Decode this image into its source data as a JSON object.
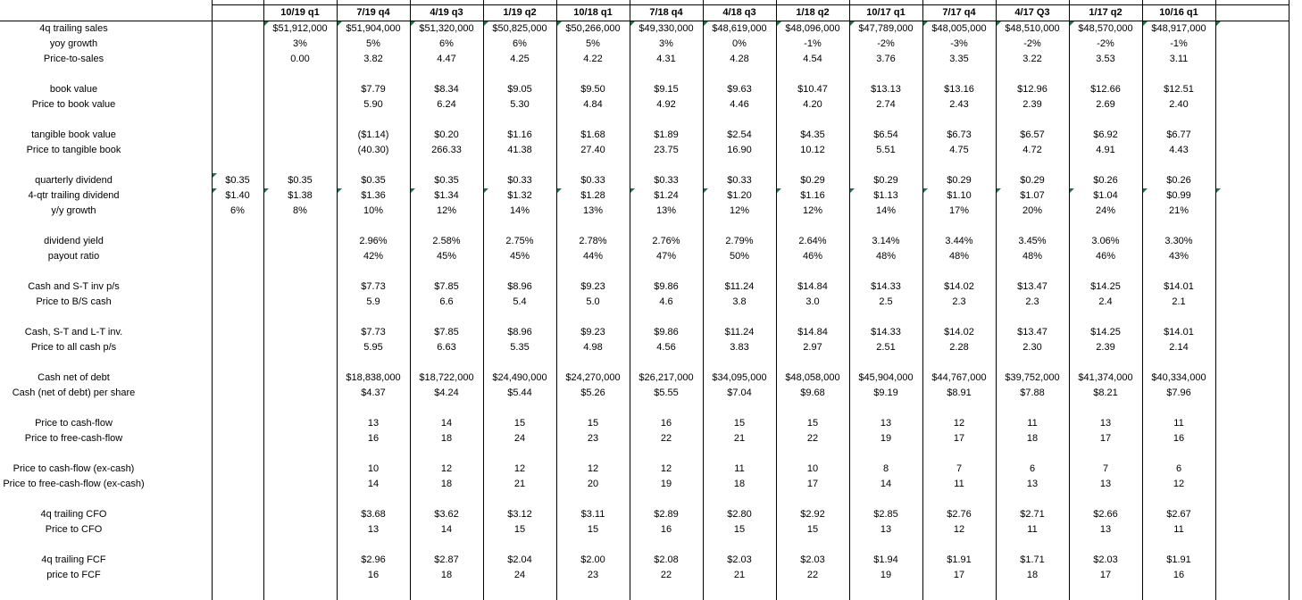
{
  "sheet": {
    "quarters": [
      "10/19 q1",
      "7/19 q4",
      "4/19 q3",
      "1/19 q2",
      "10/18 q1",
      "7/18 q4",
      "4/18 q3",
      "1/18 q2",
      "10/17 q1",
      "7/17 q4",
      "4/17 Q3",
      "1/17 q2",
      "10/16 q1"
    ],
    "rows": [
      {
        "label": "4q trailing sales",
        "b": "",
        "values": [
          "$51,912,000",
          "$51,904,000",
          "$51,320,000",
          "$50,825,000",
          "$50,266,000",
          "$49,330,000",
          "$48,619,000",
          "$48,096,000",
          "$47,789,000",
          "$48,005,000",
          "$48,510,000",
          "$48,570,000",
          "$48,917,000"
        ],
        "flag_values": true,
        "flag_partial": true
      },
      {
        "label": "yoy growth",
        "b": "",
        "values": [
          "3%",
          "5%",
          "6%",
          "6%",
          "5%",
          "3%",
          "0%",
          "-1%",
          "-2%",
          "-3%",
          "-2%",
          "-2%",
          "-1%"
        ]
      },
      {
        "label": "Price-to-sales",
        "b": "",
        "values": [
          "0.00",
          "3.82",
          "4.47",
          "4.25",
          "4.22",
          "4.31",
          "4.28",
          "4.54",
          "3.76",
          "3.35",
          "3.22",
          "3.53",
          "3.11"
        ]
      },
      {
        "spacer": true
      },
      {
        "label": "book value",
        "b": "",
        "values": [
          "",
          "$7.79",
          "$8.34",
          "$9.05",
          "$9.50",
          "$9.15",
          "$9.63",
          "$10.47",
          "$13.13",
          "$13.16",
          "$12.96",
          "$12.66",
          "$12.51"
        ]
      },
      {
        "label": "Price to book value",
        "b": "",
        "values": [
          "",
          "5.90",
          "6.24",
          "5.30",
          "4.84",
          "4.92",
          "4.46",
          "4.20",
          "2.74",
          "2.43",
          "2.39",
          "2.69",
          "2.40"
        ]
      },
      {
        "spacer": true
      },
      {
        "label": "tangible book value",
        "b": "",
        "values": [
          "",
          "($1.14)",
          "$0.20",
          "$1.16",
          "$1.68",
          "$1.89",
          "$2.54",
          "$4.35",
          "$6.54",
          "$6.73",
          "$6.57",
          "$6.92",
          "$6.77"
        ]
      },
      {
        "label": "Price to tangible book",
        "b": "",
        "values": [
          "",
          "(40.30)",
          "266.33",
          "41.38",
          "27.40",
          "23.75",
          "16.90",
          "10.12",
          "5.51",
          "4.75",
          "4.72",
          "4.91",
          "4.43"
        ]
      },
      {
        "spacer": true
      },
      {
        "label": "quarterly dividend",
        "b": "$0.35",
        "values": [
          "$0.35",
          "$0.35",
          "$0.35",
          "$0.33",
          "$0.33",
          "$0.33",
          "$0.33",
          "$0.29",
          "$0.29",
          "$0.29",
          "$0.29",
          "$0.26",
          "$0.26"
        ],
        "flag_b": true
      },
      {
        "label": "4-qtr trailing dividend",
        "b": "$1.40",
        "values": [
          "$1.38",
          "$1.36",
          "$1.34",
          "$1.32",
          "$1.28",
          "$1.24",
          "$1.20",
          "$1.16",
          "$1.13",
          "$1.10",
          "$1.07",
          "$1.04",
          "$0.99"
        ],
        "flag_b": true,
        "flag_values": true,
        "flag_partial": true
      },
      {
        "label": "y/y growth",
        "b": "6%",
        "values": [
          "8%",
          "10%",
          "12%",
          "14%",
          "13%",
          "13%",
          "12%",
          "12%",
          "14%",
          "17%",
          "20%",
          "24%",
          "21%"
        ]
      },
      {
        "spacer": true
      },
      {
        "label": "dividend yield",
        "b": "",
        "values": [
          "",
          "2.96%",
          "2.58%",
          "2.75%",
          "2.78%",
          "2.76%",
          "2.79%",
          "2.64%",
          "3.14%",
          "3.44%",
          "3.45%",
          "3.06%",
          "3.30%"
        ]
      },
      {
        "label": "payout ratio",
        "b": "",
        "values": [
          "",
          "42%",
          "45%",
          "45%",
          "44%",
          "47%",
          "50%",
          "46%",
          "48%",
          "48%",
          "48%",
          "46%",
          "43%"
        ]
      },
      {
        "spacer": true
      },
      {
        "label": "Cash and S-T inv p/s",
        "b": "",
        "values": [
          "",
          "$7.73",
          "$7.85",
          "$8.96",
          "$9.23",
          "$9.86",
          "$11.24",
          "$14.84",
          "$14.33",
          "$14.02",
          "$13.47",
          "$14.25",
          "$14.01"
        ]
      },
      {
        "label": "Price to B/S cash",
        "b": "",
        "values": [
          "",
          "5.9",
          "6.6",
          "5.4",
          "5.0",
          "4.6",
          "3.8",
          "3.0",
          "2.5",
          "2.3",
          "2.3",
          "2.4",
          "2.1"
        ]
      },
      {
        "spacer": true
      },
      {
        "label": "Cash, S-T and L-T inv.",
        "b": "",
        "values": [
          "",
          "$7.73",
          "$7.85",
          "$8.96",
          "$9.23",
          "$9.86",
          "$11.24",
          "$14.84",
          "$14.33",
          "$14.02",
          "$13.47",
          "$14.25",
          "$14.01"
        ]
      },
      {
        "label": "Price to all cash p/s",
        "b": "",
        "values": [
          "",
          "5.95",
          "6.63",
          "5.35",
          "4.98",
          "4.56",
          "3.83",
          "2.97",
          "2.51",
          "2.28",
          "2.30",
          "2.39",
          "2.14"
        ]
      },
      {
        "spacer": true
      },
      {
        "label": "Cash net of debt",
        "b": "",
        "values": [
          "",
          "$18,838,000",
          "$18,722,000",
          "$24,490,000",
          "$24,270,000",
          "$26,217,000",
          "$34,095,000",
          "$48,058,000",
          "$45,904,000",
          "$44,767,000",
          "$39,752,000",
          "$41,374,000",
          "$40,334,000"
        ]
      },
      {
        "label": "Cash (net of debt) per share",
        "b": "",
        "values": [
          "",
          "$4.37",
          "$4.24",
          "$5.44",
          "$5.26",
          "$5.55",
          "$7.04",
          "$9.68",
          "$9.19",
          "$8.91",
          "$7.88",
          "$8.21",
          "$7.96"
        ]
      },
      {
        "spacer": true
      },
      {
        "label": "Price to cash-flow",
        "b": "",
        "values": [
          "",
          "13",
          "14",
          "15",
          "15",
          "16",
          "15",
          "15",
          "13",
          "12",
          "11",
          "13",
          "11"
        ]
      },
      {
        "label": "Price to free-cash-flow",
        "b": "",
        "values": [
          "",
          "16",
          "18",
          "24",
          "23",
          "22",
          "21",
          "22",
          "19",
          "17",
          "18",
          "17",
          "16"
        ]
      },
      {
        "spacer": true
      },
      {
        "label": "Price to cash-flow (ex-cash)",
        "b": "",
        "values": [
          "",
          "10",
          "12",
          "12",
          "12",
          "12",
          "11",
          "10",
          "8",
          "7",
          "6",
          "7",
          "6"
        ]
      },
      {
        "label": "Price to free-cash-flow (ex-cash)",
        "b": "",
        "values": [
          "",
          "14",
          "18",
          "21",
          "20",
          "19",
          "18",
          "17",
          "14",
          "11",
          "13",
          "13",
          "12"
        ]
      },
      {
        "spacer": true
      },
      {
        "label": "4q trailing CFO",
        "b": "",
        "values": [
          "",
          "$3.68",
          "$3.62",
          "$3.12",
          "$3.11",
          "$2.89",
          "$2.80",
          "$2.92",
          "$2.85",
          "$2.76",
          "$2.71",
          "$2.66",
          "$2.67"
        ]
      },
      {
        "label": "Price to CFO",
        "b": "",
        "values": [
          "",
          "13",
          "14",
          "15",
          "15",
          "16",
          "15",
          "15",
          "13",
          "12",
          "11",
          "13",
          "11"
        ]
      },
      {
        "spacer": true
      },
      {
        "label": "4q trailing FCF",
        "b": "",
        "values": [
          "",
          "$2.96",
          "$2.87",
          "$2.04",
          "$2.00",
          "$2.08",
          "$2.03",
          "$2.03",
          "$1.94",
          "$1.91",
          "$1.71",
          "$2.03",
          "$1.91"
        ]
      },
      {
        "label": "price to FCF",
        "b": "",
        "values": [
          "",
          "16",
          "18",
          "24",
          "23",
          "22",
          "21",
          "22",
          "19",
          "17",
          "18",
          "17",
          "16"
        ]
      },
      {
        "spacer": true
      },
      {
        "spacer": true
      }
    ],
    "colors": {
      "gridline": "#000000",
      "flag": "#217346",
      "text": "#000000",
      "background": "#ffffff"
    }
  }
}
